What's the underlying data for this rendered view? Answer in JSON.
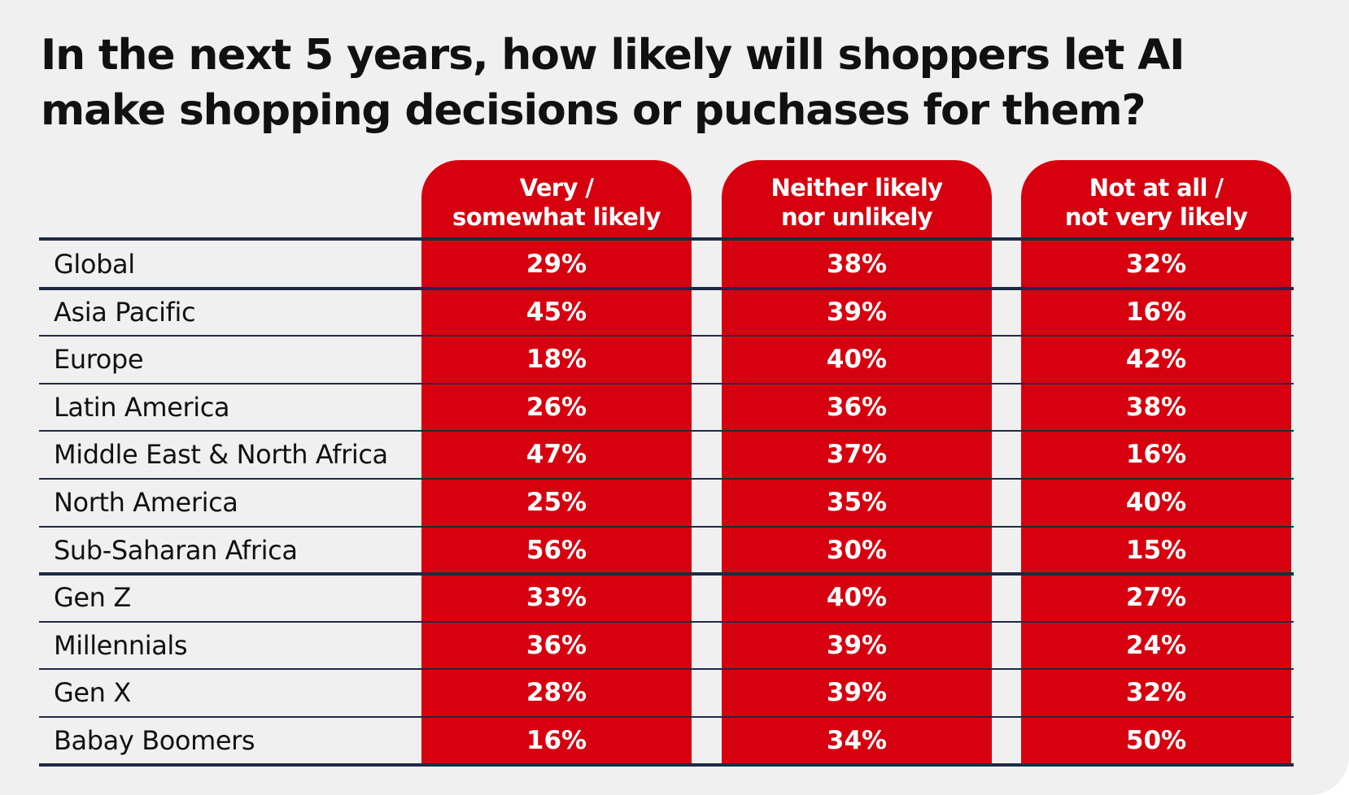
{
  "colors": {
    "background": "#f0f0f0",
    "accent_red": "#d7000f",
    "rule_navy": "#1e2a45",
    "text": "#111111",
    "cell_text": "#ffffff"
  },
  "chart_data": {
    "type": "table",
    "title": "In the next 5 years, how likely will shoppers let AI make shopping decisions or puchases for them?",
    "title_lines": [
      "In the next 5 years, how likely will shoppers let AI",
      "make shopping decisions or puchases for them?"
    ],
    "columns": [
      {
        "label": "Very / somewhat likely",
        "lines": [
          "Very /",
          "somewhat likely"
        ]
      },
      {
        "label": "Neither likely nor unlikely",
        "lines": [
          "Neither likely",
          "nor unlikely"
        ]
      },
      {
        "label": "Not at all / not very likely",
        "lines": [
          "Not at all /",
          "not very likely"
        ]
      }
    ],
    "rows": [
      {
        "label": "Global",
        "values": [
          "29%",
          "38%",
          "32%"
        ]
      },
      {
        "label": "Asia Pacific",
        "values": [
          "45%",
          "39%",
          "16%"
        ]
      },
      {
        "label": "Europe",
        "values": [
          "18%",
          "40%",
          "42%"
        ]
      },
      {
        "label": "Latin America",
        "values": [
          "26%",
          "36%",
          "38%"
        ]
      },
      {
        "label": "Middle East & North Africa",
        "values": [
          "47%",
          "37%",
          "16%"
        ]
      },
      {
        "label": "North America",
        "values": [
          "25%",
          "35%",
          "40%"
        ]
      },
      {
        "label": "Sub-Saharan Africa",
        "values": [
          "56%",
          "30%",
          "15%"
        ]
      },
      {
        "label": "Gen Z",
        "values": [
          "33%",
          "40%",
          "27%"
        ]
      },
      {
        "label": "Millennials",
        "values": [
          "36%",
          "39%",
          "24%"
        ]
      },
      {
        "label": "Gen X",
        "values": [
          "28%",
          "39%",
          "32%"
        ]
      },
      {
        "label": "Babay Boomers",
        "values": [
          "16%",
          "34%",
          "50%"
        ]
      }
    ],
    "group_breaks_after_rows": [
      0,
      6,
      10
    ]
  }
}
